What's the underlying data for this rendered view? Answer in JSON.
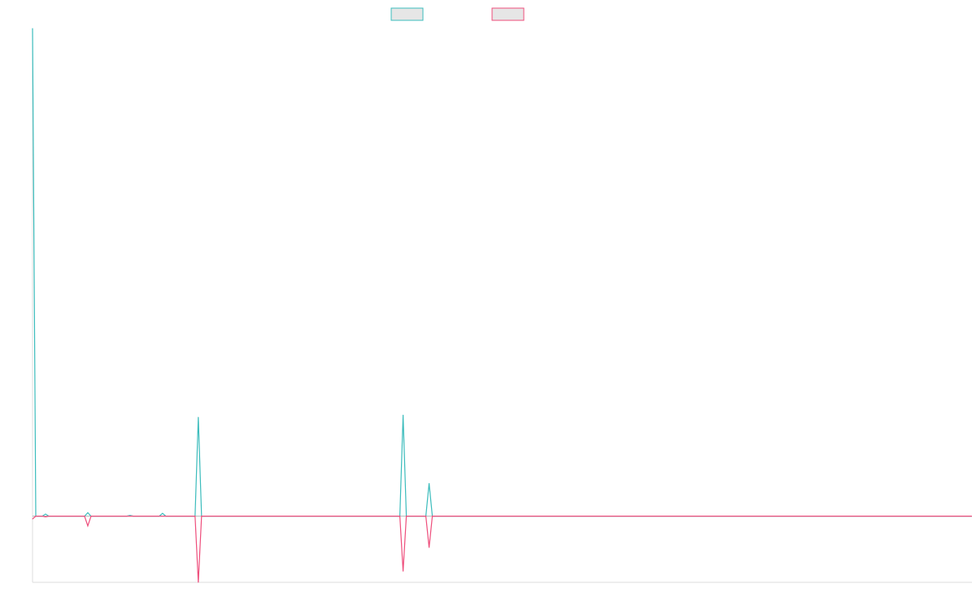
{
  "chart_data": {
    "type": "line",
    "title": "",
    "xlabel": "",
    "ylabel": "",
    "x_count": 290,
    "grid": false,
    "legend_placement": "top-center",
    "ylim": [
      -95,
      700
    ],
    "series": [
      {
        "color": "#3bbcbc",
        "points": [
          [
            0,
            700
          ],
          [
            1,
            0
          ],
          [
            4,
            3
          ],
          [
            17,
            5
          ],
          [
            30,
            1
          ],
          [
            40,
            4
          ],
          [
            51,
            142
          ],
          [
            114,
            145
          ],
          [
            122,
            47
          ]
        ]
      },
      {
        "color": "#ee4d7b",
        "points": [
          [
            0,
            -4
          ],
          [
            1,
            0
          ],
          [
            4,
            -1
          ],
          [
            17,
            -14
          ],
          [
            51,
            -95
          ],
          [
            114,
            -79
          ],
          [
            122,
            -45
          ]
        ]
      }
    ]
  }
}
